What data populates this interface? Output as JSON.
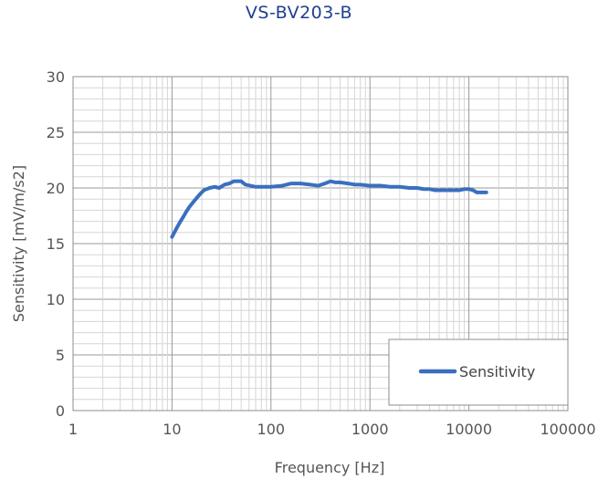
{
  "chart_data": {
    "type": "line",
    "title": "VS-BV203-B",
    "xlabel": "Frequency [Hz]",
    "ylabel": "Sensitivity [mV/m/s2]",
    "x_scale": "log",
    "xlim": [
      1,
      100000
    ],
    "ylim": [
      0,
      30
    ],
    "x_ticks": [
      "1",
      "10",
      "100",
      "1000",
      "10000",
      "100000"
    ],
    "y_ticks": [
      "0",
      "5",
      "10",
      "15",
      "20",
      "25",
      "30"
    ],
    "grid": true,
    "legend_position": "bottom-right",
    "series": [
      {
        "name": "Sensitivity",
        "color": "#3a6fc0",
        "points": [
          [
            10,
            15.6
          ],
          [
            11,
            16.3
          ],
          [
            12,
            16.9
          ],
          [
            13,
            17.4
          ],
          [
            14,
            17.9
          ],
          [
            15,
            18.3
          ],
          [
            17,
            18.9
          ],
          [
            19,
            19.4
          ],
          [
            21,
            19.8
          ],
          [
            24,
            20.0
          ],
          [
            27,
            20.1
          ],
          [
            30,
            20.0
          ],
          [
            34,
            20.3
          ],
          [
            38,
            20.4
          ],
          [
            42,
            20.6
          ],
          [
            46,
            20.6
          ],
          [
            50,
            20.6
          ],
          [
            55,
            20.3
          ],
          [
            62,
            20.2
          ],
          [
            70,
            20.1
          ],
          [
            80,
            20.1
          ],
          [
            100,
            20.1
          ],
          [
            130,
            20.2
          ],
          [
            160,
            20.4
          ],
          [
            200,
            20.4
          ],
          [
            250,
            20.3
          ],
          [
            300,
            20.2
          ],
          [
            350,
            20.4
          ],
          [
            400,
            20.6
          ],
          [
            450,
            20.5
          ],
          [
            500,
            20.5
          ],
          [
            600,
            20.4
          ],
          [
            700,
            20.3
          ],
          [
            800,
            20.3
          ],
          [
            1000,
            20.2
          ],
          [
            1300,
            20.2
          ],
          [
            1600,
            20.1
          ],
          [
            2000,
            20.1
          ],
          [
            2500,
            20.0
          ],
          [
            3000,
            20.0
          ],
          [
            3500,
            19.9
          ],
          [
            4000,
            19.9
          ],
          [
            4500,
            19.8
          ],
          [
            5000,
            19.8
          ],
          [
            6000,
            19.8
          ],
          [
            7000,
            19.8
          ],
          [
            8000,
            19.8
          ],
          [
            9000,
            19.9
          ],
          [
            10000,
            19.9
          ],
          [
            11000,
            19.8
          ],
          [
            12000,
            19.6
          ],
          [
            13000,
            19.6
          ],
          [
            14000,
            19.6
          ],
          [
            15000,
            19.6
          ]
        ]
      }
    ]
  }
}
